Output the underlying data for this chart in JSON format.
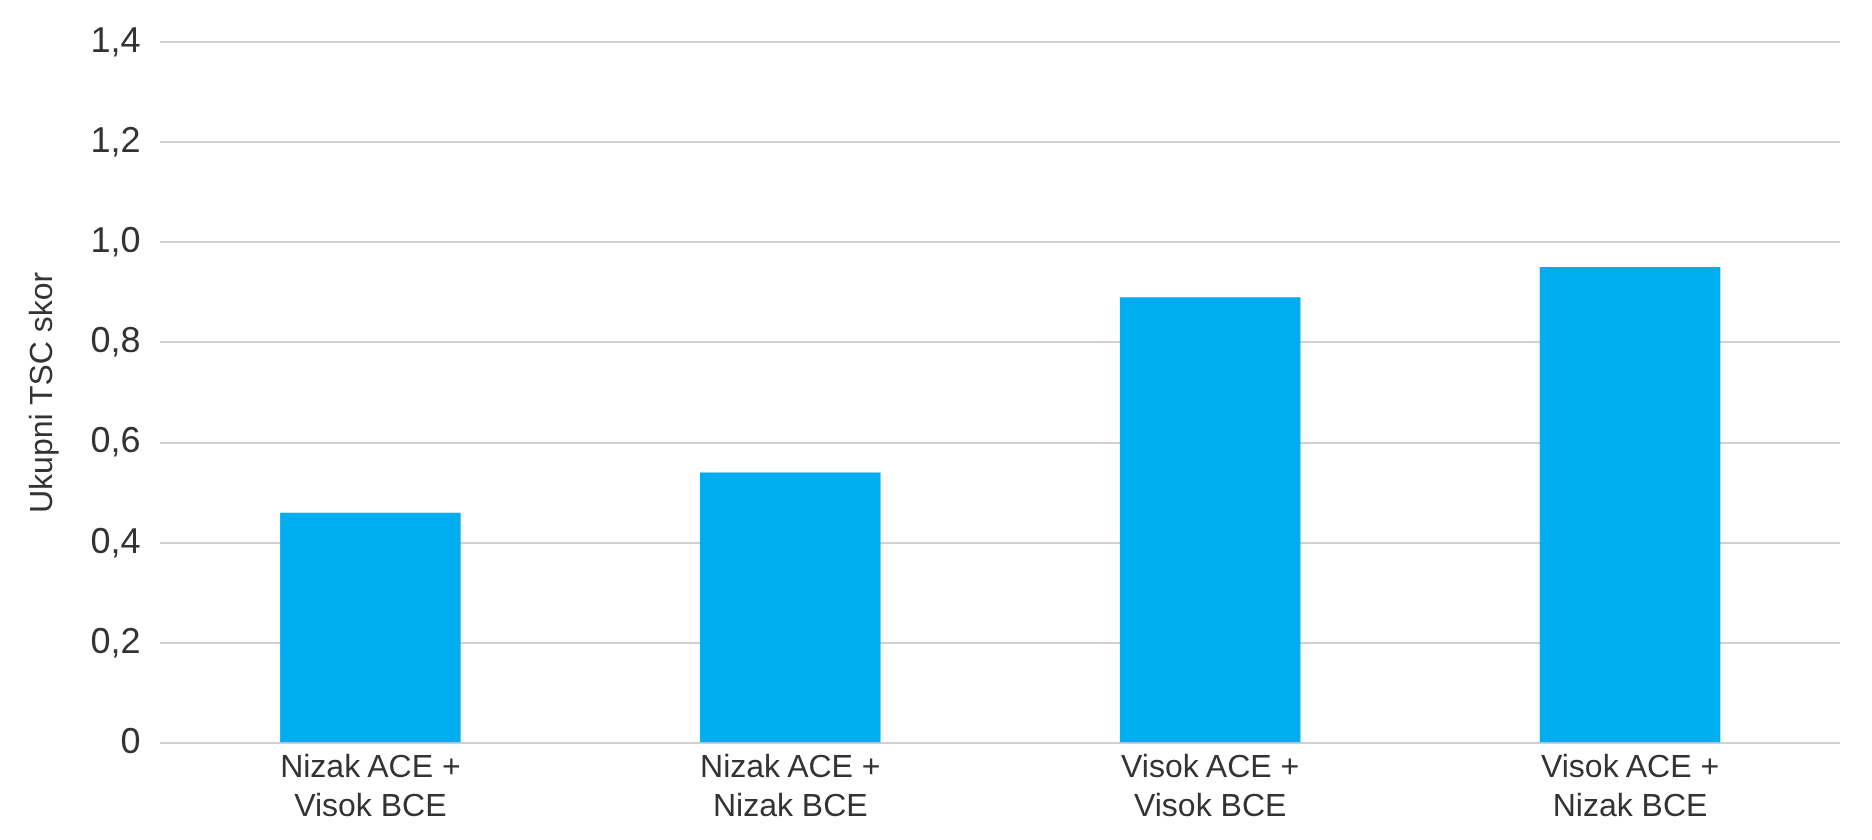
{
  "chart_data": {
    "type": "bar",
    "ylabel": "Ukupni TSC skor",
    "categories": [
      "Nizak ACE +\nVisok BCE",
      "Nizak ACE +\nNizak BCE",
      "Visok ACE +\nVisok BCE",
      "Visok ACE +\nNizak BCE"
    ],
    "values": [
      0.46,
      0.54,
      0.89,
      0.95
    ],
    "color": "#00aeef",
    "ylim": [
      0,
      1.4
    ],
    "yticks": [
      {
        "value": 0,
        "label": "0"
      },
      {
        "value": 0.2,
        "label": "0,2"
      },
      {
        "value": 0.4,
        "label": "0,4"
      },
      {
        "value": 0.6,
        "label": "0,6"
      },
      {
        "value": 0.8,
        "label": "0,8"
      },
      {
        "value": 1,
        "label": "1,0"
      },
      {
        "value": 1.2,
        "label": "1,2"
      },
      {
        "value": 1.4,
        "label": "1,4"
      }
    ],
    "grid": "y"
  }
}
